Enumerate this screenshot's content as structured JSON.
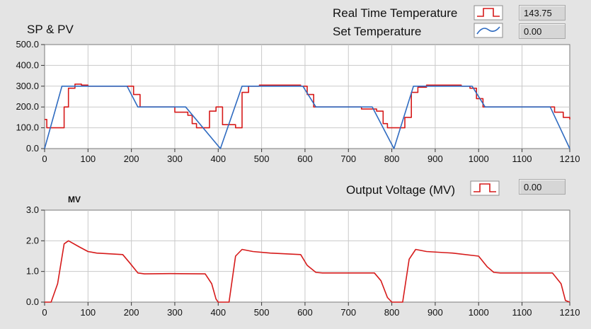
{
  "header": {
    "legend_real_time": "Real Time Temperature",
    "legend_set": "Set Temperature",
    "legend_output": "Output Voltage (MV)",
    "indicator_real_time": "143.75",
    "indicator_set": "0.00",
    "indicator_output": "0.00"
  },
  "colors": {
    "real_time": "#d61a1a",
    "set": "#2f6bc0",
    "plot_bg": "#ffffff",
    "grid": "#c9c9c9",
    "panel": "#e4e4e4"
  },
  "chart_data": [
    {
      "type": "line",
      "title": "SP & PV",
      "xlabel": "",
      "ylabel": "",
      "xlim": [
        0,
        1210
      ],
      "ylim": [
        0,
        500
      ],
      "x_ticks": [
        "0",
        "100",
        "200",
        "300",
        "400",
        "500",
        "600",
        "700",
        "800",
        "900",
        "1000",
        "1100",
        "1210"
      ],
      "y_ticks": [
        "0.0",
        "100.0",
        "200.0",
        "300.0",
        "400.0",
        "500.0"
      ],
      "grid": true,
      "legend": "top-right",
      "series": [
        {
          "name": "Real Time Temperature",
          "color": "#d61a1a",
          "step": true,
          "points": [
            [
              0,
              140
            ],
            [
              5,
              100
            ],
            [
              40,
              100
            ],
            [
              45,
              200
            ],
            [
              55,
              290
            ],
            [
              70,
              310
            ],
            [
              85,
              305
            ],
            [
              100,
              300
            ],
            [
              190,
              300
            ],
            [
              205,
              260
            ],
            [
              220,
              200
            ],
            [
              290,
              200
            ],
            [
              300,
              175
            ],
            [
              330,
              160
            ],
            [
              340,
              120
            ],
            [
              350,
              100
            ],
            [
              370,
              100
            ],
            [
              380,
              180
            ],
            [
              395,
              200
            ],
            [
              410,
              115
            ],
            [
              440,
              100
            ],
            [
              455,
              270
            ],
            [
              470,
              300
            ],
            [
              495,
              305
            ],
            [
              590,
              300
            ],
            [
              605,
              260
            ],
            [
              620,
              200
            ],
            [
              720,
              200
            ],
            [
              730,
              190
            ],
            [
              765,
              180
            ],
            [
              780,
              120
            ],
            [
              790,
              100
            ],
            [
              800,
              100
            ],
            [
              815,
              100
            ],
            [
              830,
              150
            ],
            [
              845,
              270
            ],
            [
              860,
              295
            ],
            [
              880,
              305
            ],
            [
              960,
              300
            ],
            [
              980,
              290
            ],
            [
              995,
              240
            ],
            [
              1010,
              200
            ],
            [
              1160,
              200
            ],
            [
              1175,
              175
            ],
            [
              1195,
              150
            ],
            [
              1210,
              140
            ]
          ]
        },
        {
          "name": "Set Temperature",
          "color": "#2f6bc0",
          "points": [
            [
              0,
              0
            ],
            [
              40,
              300
            ],
            [
              190,
              300
            ],
            [
              215,
              200
            ],
            [
              325,
              200
            ],
            [
              405,
              0
            ],
            [
              455,
              300
            ],
            [
              595,
              300
            ],
            [
              625,
              200
            ],
            [
              755,
              200
            ],
            [
              805,
              0
            ],
            [
              850,
              300
            ],
            [
              985,
              300
            ],
            [
              1015,
              200
            ],
            [
              1165,
              200
            ],
            [
              1210,
              0
            ]
          ]
        }
      ]
    },
    {
      "type": "line",
      "title": "MV",
      "xlabel": "",
      "ylabel": "",
      "xlim": [
        0,
        1210
      ],
      "ylim": [
        0,
        3
      ],
      "x_ticks": [
        "0",
        "100",
        "200",
        "300",
        "400",
        "500",
        "600",
        "700",
        "800",
        "900",
        "1000",
        "1100",
        "1210"
      ],
      "y_ticks": [
        "0.0",
        "1.0",
        "2.0",
        "3.0"
      ],
      "grid": true,
      "legend": "top-right",
      "series": [
        {
          "name": "Output Voltage (MV)",
          "color": "#d61a1a",
          "points": [
            [
              0,
              0
            ],
            [
              15,
              0
            ],
            [
              30,
              0.6
            ],
            [
              45,
              1.9
            ],
            [
              55,
              2.0
            ],
            [
              80,
              1.8
            ],
            [
              100,
              1.65
            ],
            [
              120,
              1.6
            ],
            [
              180,
              1.55
            ],
            [
              195,
              1.3
            ],
            [
              215,
              0.95
            ],
            [
              230,
              0.92
            ],
            [
              290,
              0.93
            ],
            [
              370,
              0.92
            ],
            [
              385,
              0.6
            ],
            [
              395,
              0.1
            ],
            [
              400,
              0.0
            ],
            [
              425,
              0.0
            ],
            [
              440,
              1.5
            ],
            [
              455,
              1.72
            ],
            [
              480,
              1.65
            ],
            [
              520,
              1.6
            ],
            [
              590,
              1.55
            ],
            [
              605,
              1.2
            ],
            [
              625,
              0.97
            ],
            [
              640,
              0.95
            ],
            [
              760,
              0.95
            ],
            [
              775,
              0.7
            ],
            [
              790,
              0.15
            ],
            [
              800,
              0.0
            ],
            [
              825,
              0.0
            ],
            [
              840,
              1.4
            ],
            [
              855,
              1.72
            ],
            [
              880,
              1.65
            ],
            [
              940,
              1.6
            ],
            [
              1000,
              1.5
            ],
            [
              1020,
              1.15
            ],
            [
              1035,
              0.97
            ],
            [
              1050,
              0.95
            ],
            [
              1170,
              0.95
            ],
            [
              1190,
              0.6
            ],
            [
              1200,
              0.05
            ],
            [
              1210,
              0.0
            ]
          ]
        }
      ]
    }
  ]
}
